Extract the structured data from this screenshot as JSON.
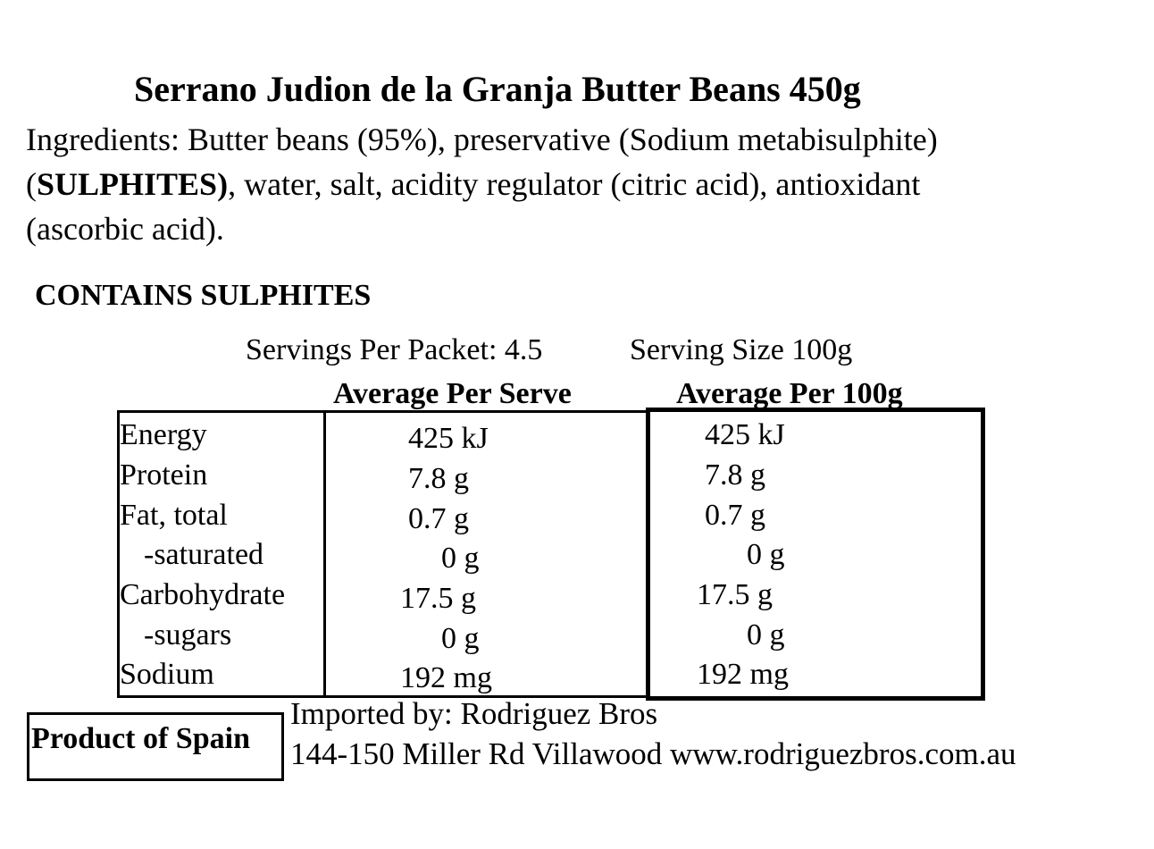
{
  "title": "Serrano Judion de la Granja Butter Beans 450g",
  "ingredients": {
    "line1": "Ingredients: Butter beans (95%), preservative (Sodium metabisulphite)",
    "line2_open": "(",
    "line2_bold": "SULPHITES)",
    "line2_rest": ", water, salt, acidity regulator (citric acid), antioxidant",
    "line3": "(ascorbic acid)."
  },
  "allergen": "CONTAINS SULPHITES",
  "servings": {
    "per_packet": "Servings Per Packet: 4.5",
    "size": "Serving Size 100g"
  },
  "table": {
    "header_serve": "Average Per Serve",
    "header_100g": "Average Per 100g",
    "rows": [
      {
        "label": "Energy",
        "serve": "425 kJ",
        "per100": "425 kJ"
      },
      {
        "label": "Protein",
        "serve": "7.8 g",
        "per100": "7.8 g"
      },
      {
        "label": "Fat, total",
        "serve": "0.7 g",
        "per100": "0.7 g"
      },
      {
        "label": "-saturated",
        "serve": "0 g",
        "per100": "0 g"
      },
      {
        "label": "Carbohydrate",
        "serve": "17.5 g",
        "per100": "17.5 g"
      },
      {
        "label": "-sugars",
        "serve": "0 g",
        "per100": "0 g"
      },
      {
        "label": "Sodium",
        "serve": "192 mg",
        "per100": "192 mg"
      }
    ]
  },
  "origin": "Product of Spain",
  "importer": {
    "line1": "Imported by: Rodriguez Bros",
    "line2": "144-150 Miller Rd Villawood www.rodriguezbros.com.au"
  }
}
